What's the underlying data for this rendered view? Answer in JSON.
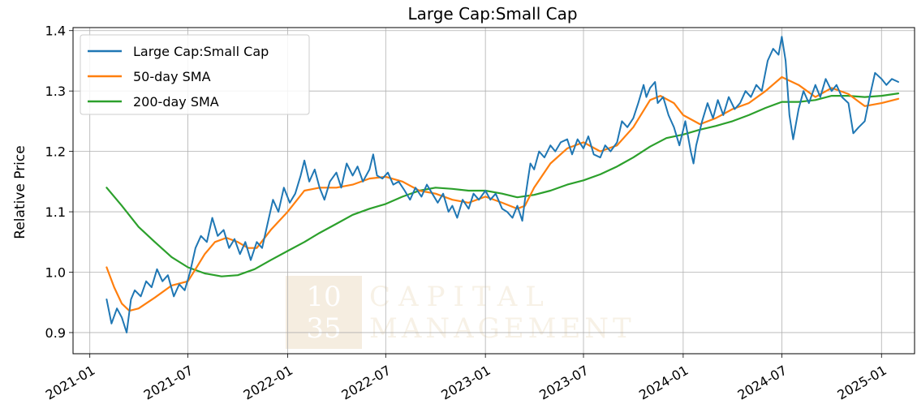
{
  "chart_data": {
    "type": "line",
    "title": "Large Cap:Small Cap",
    "xlabel": "",
    "ylabel": "Relative Price",
    "x_range": [
      "2020-12-01",
      "2025-03-03"
    ],
    "ylim": [
      0.865,
      1.405
    ],
    "grid": true,
    "legend_position": "top-left",
    "x_ticks": [
      "2021-01",
      "2021-07",
      "2022-01",
      "2022-07",
      "2023-01",
      "2023-07",
      "2024-01",
      "2024-07",
      "2025-01"
    ],
    "y_ticks": [
      "0.9",
      "1.0",
      "1.1",
      "1.2",
      "1.3",
      "1.4"
    ],
    "series": [
      {
        "name": "Large Cap:Small Cap",
        "color": "#1f77b4",
        "points": [
          [
            "2021-02-01",
            0.955
          ],
          [
            "2021-02-10",
            0.915
          ],
          [
            "2021-02-20",
            0.94
          ],
          [
            "2021-03-01",
            0.925
          ],
          [
            "2021-03-10",
            0.9
          ],
          [
            "2021-03-18",
            0.955
          ],
          [
            "2021-03-25",
            0.97
          ],
          [
            "2021-04-05",
            0.96
          ],
          [
            "2021-04-15",
            0.985
          ],
          [
            "2021-04-25",
            0.975
          ],
          [
            "2021-05-05",
            1.005
          ],
          [
            "2021-05-15",
            0.985
          ],
          [
            "2021-05-25",
            0.995
          ],
          [
            "2021-06-05",
            0.96
          ],
          [
            "2021-06-15",
            0.98
          ],
          [
            "2021-06-25",
            0.97
          ],
          [
            "2021-07-05",
            1.0
          ],
          [
            "2021-07-15",
            1.04
          ],
          [
            "2021-07-25",
            1.06
          ],
          [
            "2021-08-05",
            1.05
          ],
          [
            "2021-08-15",
            1.09
          ],
          [
            "2021-08-25",
            1.06
          ],
          [
            "2021-09-05",
            1.07
          ],
          [
            "2021-09-15",
            1.04
          ],
          [
            "2021-09-25",
            1.055
          ],
          [
            "2021-10-05",
            1.03
          ],
          [
            "2021-10-15",
            1.05
          ],
          [
            "2021-10-25",
            1.02
          ],
          [
            "2021-11-05",
            1.05
          ],
          [
            "2021-11-15",
            1.04
          ],
          [
            "2021-11-25",
            1.08
          ],
          [
            "2021-12-05",
            1.12
          ],
          [
            "2021-12-15",
            1.1
          ],
          [
            "2021-12-25",
            1.14
          ],
          [
            "2022-01-05",
            1.115
          ],
          [
            "2022-01-15",
            1.13
          ],
          [
            "2022-01-25",
            1.16
          ],
          [
            "2022-02-01",
            1.185
          ],
          [
            "2022-02-10",
            1.15
          ],
          [
            "2022-02-20",
            1.17
          ],
          [
            "2022-03-01",
            1.14
          ],
          [
            "2022-03-10",
            1.12
          ],
          [
            "2022-03-20",
            1.15
          ],
          [
            "2022-04-01",
            1.165
          ],
          [
            "2022-04-10",
            1.14
          ],
          [
            "2022-04-20",
            1.18
          ],
          [
            "2022-05-01",
            1.16
          ],
          [
            "2022-05-10",
            1.175
          ],
          [
            "2022-05-20",
            1.15
          ],
          [
            "2022-06-01",
            1.17
          ],
          [
            "2022-06-08",
            1.195
          ],
          [
            "2022-06-15",
            1.16
          ],
          [
            "2022-06-25",
            1.155
          ],
          [
            "2022-07-05",
            1.165
          ],
          [
            "2022-07-15",
            1.145
          ],
          [
            "2022-07-25",
            1.15
          ],
          [
            "2022-08-05",
            1.135
          ],
          [
            "2022-08-15",
            1.12
          ],
          [
            "2022-08-25",
            1.14
          ],
          [
            "2022-09-05",
            1.125
          ],
          [
            "2022-09-15",
            1.145
          ],
          [
            "2022-09-25",
            1.13
          ],
          [
            "2022-10-05",
            1.115
          ],
          [
            "2022-10-15",
            1.13
          ],
          [
            "2022-10-25",
            1.1
          ],
          [
            "2022-11-01",
            1.11
          ],
          [
            "2022-11-10",
            1.09
          ],
          [
            "2022-11-20",
            1.12
          ],
          [
            "2022-12-01",
            1.105
          ],
          [
            "2022-12-10",
            1.13
          ],
          [
            "2022-12-20",
            1.12
          ],
          [
            "2023-01-01",
            1.135
          ],
          [
            "2023-01-10",
            1.12
          ],
          [
            "2023-01-20",
            1.13
          ],
          [
            "2023-02-01",
            1.105
          ],
          [
            "2023-02-10",
            1.1
          ],
          [
            "2023-02-20",
            1.09
          ],
          [
            "2023-03-01",
            1.11
          ],
          [
            "2023-03-10",
            1.085
          ],
          [
            "2023-03-15",
            1.12
          ],
          [
            "2023-03-20",
            1.15
          ],
          [
            "2023-03-25",
            1.18
          ],
          [
            "2023-04-01",
            1.17
          ],
          [
            "2023-04-10",
            1.2
          ],
          [
            "2023-04-20",
            1.19
          ],
          [
            "2023-05-01",
            1.21
          ],
          [
            "2023-05-10",
            1.2
          ],
          [
            "2023-05-20",
            1.215
          ],
          [
            "2023-06-01",
            1.22
          ],
          [
            "2023-06-10",
            1.195
          ],
          [
            "2023-06-20",
            1.22
          ],
          [
            "2023-07-01",
            1.205
          ],
          [
            "2023-07-10",
            1.225
          ],
          [
            "2023-07-20",
            1.195
          ],
          [
            "2023-08-01",
            1.19
          ],
          [
            "2023-08-10",
            1.21
          ],
          [
            "2023-08-20",
            1.2
          ],
          [
            "2023-09-01",
            1.215
          ],
          [
            "2023-09-10",
            1.25
          ],
          [
            "2023-09-20",
            1.24
          ],
          [
            "2023-10-01",
            1.255
          ],
          [
            "2023-10-10",
            1.28
          ],
          [
            "2023-10-20",
            1.31
          ],
          [
            "2023-10-25",
            1.29
          ],
          [
            "2023-11-01",
            1.305
          ],
          [
            "2023-11-10",
            1.315
          ],
          [
            "2023-11-15",
            1.28
          ],
          [
            "2023-11-25",
            1.29
          ],
          [
            "2023-12-05",
            1.26
          ],
          [
            "2023-12-15",
            1.24
          ],
          [
            "2023-12-25",
            1.21
          ],
          [
            "2024-01-05",
            1.25
          ],
          [
            "2024-01-15",
            1.2
          ],
          [
            "2024-01-20",
            1.18
          ],
          [
            "2024-01-25",
            1.21
          ],
          [
            "2024-02-05",
            1.25
          ],
          [
            "2024-02-15",
            1.28
          ],
          [
            "2024-02-25",
            1.255
          ],
          [
            "2024-03-05",
            1.285
          ],
          [
            "2024-03-15",
            1.26
          ],
          [
            "2024-03-25",
            1.29
          ],
          [
            "2024-04-05",
            1.27
          ],
          [
            "2024-04-15",
            1.28
          ],
          [
            "2024-04-25",
            1.3
          ],
          [
            "2024-05-05",
            1.29
          ],
          [
            "2024-05-15",
            1.31
          ],
          [
            "2024-05-25",
            1.3
          ],
          [
            "2024-06-05",
            1.35
          ],
          [
            "2024-06-15",
            1.37
          ],
          [
            "2024-06-25",
            1.36
          ],
          [
            "2024-07-01",
            1.39
          ],
          [
            "2024-07-08",
            1.35
          ],
          [
            "2024-07-15",
            1.26
          ],
          [
            "2024-07-22",
            1.22
          ],
          [
            "2024-08-01",
            1.27
          ],
          [
            "2024-08-10",
            1.3
          ],
          [
            "2024-08-20",
            1.28
          ],
          [
            "2024-09-01",
            1.31
          ],
          [
            "2024-09-10",
            1.29
          ],
          [
            "2024-09-20",
            1.32
          ],
          [
            "2024-10-01",
            1.3
          ],
          [
            "2024-10-10",
            1.31
          ],
          [
            "2024-10-20",
            1.29
          ],
          [
            "2024-11-01",
            1.28
          ],
          [
            "2024-11-10",
            1.23
          ],
          [
            "2024-11-20",
            1.24
          ],
          [
            "2024-12-01",
            1.25
          ],
          [
            "2024-12-10",
            1.29
          ],
          [
            "2024-12-20",
            1.33
          ],
          [
            "2025-01-01",
            1.32
          ],
          [
            "2025-01-10",
            1.31
          ],
          [
            "2025-01-20",
            1.32
          ],
          [
            "2025-02-01",
            1.315
          ]
        ]
      },
      {
        "name": "50-day SMA",
        "color": "#ff7f0e",
        "points": [
          [
            "2021-02-01",
            1.008
          ],
          [
            "2021-02-15",
            0.975
          ],
          [
            "2021-03-01",
            0.948
          ],
          [
            "2021-03-15",
            0.936
          ],
          [
            "2021-04-01",
            0.94
          ],
          [
            "2021-05-01",
            0.958
          ],
          [
            "2021-06-01",
            0.978
          ],
          [
            "2021-07-01",
            0.985
          ],
          [
            "2021-07-15",
            1.005
          ],
          [
            "2021-08-01",
            1.03
          ],
          [
            "2021-08-20",
            1.05
          ],
          [
            "2021-09-10",
            1.057
          ],
          [
            "2021-10-01",
            1.05
          ],
          [
            "2021-10-20",
            1.04
          ],
          [
            "2021-11-05",
            1.04
          ],
          [
            "2021-12-01",
            1.07
          ],
          [
            "2022-01-01",
            1.1
          ],
          [
            "2022-02-01",
            1.135
          ],
          [
            "2022-03-01",
            1.14
          ],
          [
            "2022-04-01",
            1.14
          ],
          [
            "2022-05-01",
            1.145
          ],
          [
            "2022-06-01",
            1.155
          ],
          [
            "2022-07-01",
            1.158
          ],
          [
            "2022-08-01",
            1.15
          ],
          [
            "2022-09-01",
            1.135
          ],
          [
            "2022-10-01",
            1.13
          ],
          [
            "2022-11-01",
            1.12
          ],
          [
            "2022-12-01",
            1.115
          ],
          [
            "2023-01-01",
            1.125
          ],
          [
            "2023-02-01",
            1.115
          ],
          [
            "2023-03-01",
            1.105
          ],
          [
            "2023-03-15",
            1.11
          ],
          [
            "2023-04-01",
            1.14
          ],
          [
            "2023-05-01",
            1.18
          ],
          [
            "2023-06-01",
            1.205
          ],
          [
            "2023-07-01",
            1.215
          ],
          [
            "2023-08-01",
            1.2
          ],
          [
            "2023-09-01",
            1.21
          ],
          [
            "2023-10-01",
            1.24
          ],
          [
            "2023-11-01",
            1.285
          ],
          [
            "2023-11-20",
            1.292
          ],
          [
            "2023-12-15",
            1.28
          ],
          [
            "2024-01-01",
            1.26
          ],
          [
            "2024-02-01",
            1.245
          ],
          [
            "2024-03-01",
            1.255
          ],
          [
            "2024-04-01",
            1.27
          ],
          [
            "2024-05-01",
            1.28
          ],
          [
            "2024-06-01",
            1.3
          ],
          [
            "2024-07-01",
            1.323
          ],
          [
            "2024-08-01",
            1.31
          ],
          [
            "2024-09-01",
            1.29
          ],
          [
            "2024-10-01",
            1.305
          ],
          [
            "2024-11-01",
            1.295
          ],
          [
            "2024-12-01",
            1.275
          ],
          [
            "2025-01-01",
            1.28
          ],
          [
            "2025-02-01",
            1.287
          ]
        ]
      },
      {
        "name": "200-day SMA",
        "color": "#2ca02c",
        "points": [
          [
            "2021-02-01",
            1.14
          ],
          [
            "2021-03-01",
            1.11
          ],
          [
            "2021-04-01",
            1.075
          ],
          [
            "2021-05-01",
            1.05
          ],
          [
            "2021-06-01",
            1.025
          ],
          [
            "2021-07-01",
            1.008
          ],
          [
            "2021-08-01",
            0.998
          ],
          [
            "2021-09-01",
            0.993
          ],
          [
            "2021-10-01",
            0.995
          ],
          [
            "2021-11-01",
            1.005
          ],
          [
            "2021-12-01",
            1.02
          ],
          [
            "2022-01-01",
            1.035
          ],
          [
            "2022-02-01",
            1.05
          ],
          [
            "2022-03-01",
            1.065
          ],
          [
            "2022-04-01",
            1.08
          ],
          [
            "2022-05-01",
            1.095
          ],
          [
            "2022-06-01",
            1.105
          ],
          [
            "2022-07-01",
            1.113
          ],
          [
            "2022-08-01",
            1.125
          ],
          [
            "2022-09-01",
            1.135
          ],
          [
            "2022-10-01",
            1.14
          ],
          [
            "2022-11-01",
            1.138
          ],
          [
            "2022-12-01",
            1.135
          ],
          [
            "2023-01-01",
            1.135
          ],
          [
            "2023-02-01",
            1.13
          ],
          [
            "2023-03-01",
            1.124
          ],
          [
            "2023-04-01",
            1.128
          ],
          [
            "2023-05-01",
            1.135
          ],
          [
            "2023-06-01",
            1.145
          ],
          [
            "2023-07-01",
            1.152
          ],
          [
            "2023-08-01",
            1.162
          ],
          [
            "2023-09-01",
            1.175
          ],
          [
            "2023-10-01",
            1.19
          ],
          [
            "2023-11-01",
            1.208
          ],
          [
            "2023-12-01",
            1.222
          ],
          [
            "2024-01-01",
            1.228
          ],
          [
            "2024-02-01",
            1.236
          ],
          [
            "2024-03-01",
            1.242
          ],
          [
            "2024-04-01",
            1.25
          ],
          [
            "2024-05-01",
            1.26
          ],
          [
            "2024-06-01",
            1.272
          ],
          [
            "2024-07-01",
            1.282
          ],
          [
            "2024-08-01",
            1.282
          ],
          [
            "2024-09-01",
            1.285
          ],
          [
            "2024-10-01",
            1.292
          ],
          [
            "2024-11-01",
            1.292
          ],
          [
            "2024-12-01",
            1.29
          ],
          [
            "2025-01-01",
            1.292
          ],
          [
            "2025-02-01",
            1.296
          ]
        ]
      }
    ]
  },
  "watermark": {
    "box_line1": "10",
    "box_line2": "35",
    "text_line1": "CAPITAL",
    "text_line2": "MANAGEMENT",
    "box_color": "#f5ede0",
    "box_text_color": "#ffffff",
    "text_color": "#f7f1e6"
  }
}
